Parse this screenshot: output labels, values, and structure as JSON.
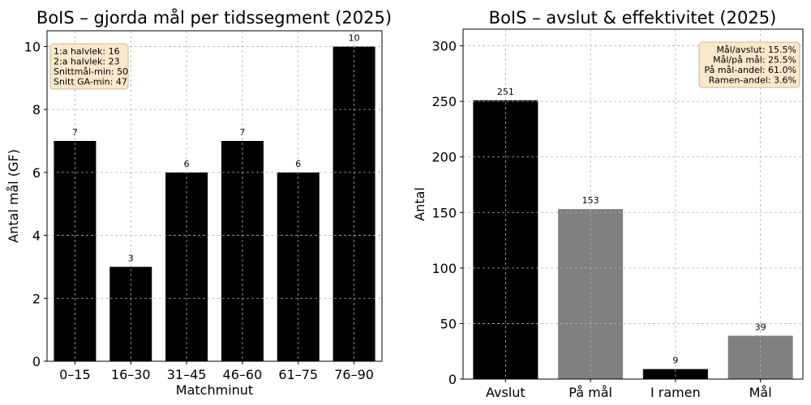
{
  "chart_data": [
    {
      "type": "bar",
      "title": "BoIS – gjorda mål per tidssegment (2025)",
      "xlabel": "Matchminut",
      "ylabel": "Antal mål (GF)",
      "categories": [
        "0–15",
        "16–30",
        "31–45",
        "46–60",
        "61–75",
        "76–90"
      ],
      "values": [
        7,
        3,
        6,
        7,
        6,
        10
      ],
      "colors": [
        "#000000",
        "#000000",
        "#000000",
        "#000000",
        "#000000",
        "#000000"
      ],
      "ylim": [
        0,
        10.5
      ],
      "yticks": [
        0,
        2,
        4,
        6,
        8,
        10
      ],
      "grid": true,
      "annotation_position": "top-left",
      "annotation": [
        "1:a halvlek: 16",
        "2:a halvlek: 23",
        "Snittmål-min: 50",
        "Snitt GA-min: 47"
      ]
    },
    {
      "type": "bar",
      "title": "BoIS – avslut & effektivitet (2025)",
      "xlabel": "",
      "ylabel": "Antal",
      "categories": [
        "Avslut",
        "På mål",
        "I ramen",
        "Mål"
      ],
      "values": [
        251,
        153,
        9,
        39
      ],
      "colors": [
        "#000000",
        "#808080",
        "#000000",
        "#808080"
      ],
      "ylim": [
        0,
        315
      ],
      "yticks": [
        0,
        50,
        100,
        150,
        200,
        250,
        300
      ],
      "grid": true,
      "annotation_position": "top-right",
      "annotation": [
        "Mål/avslut: 15.5%",
        "Mål/på mål: 25.5%",
        "På mål-andel: 61.0%",
        "Ramen-andel: 3.6%"
      ]
    }
  ]
}
